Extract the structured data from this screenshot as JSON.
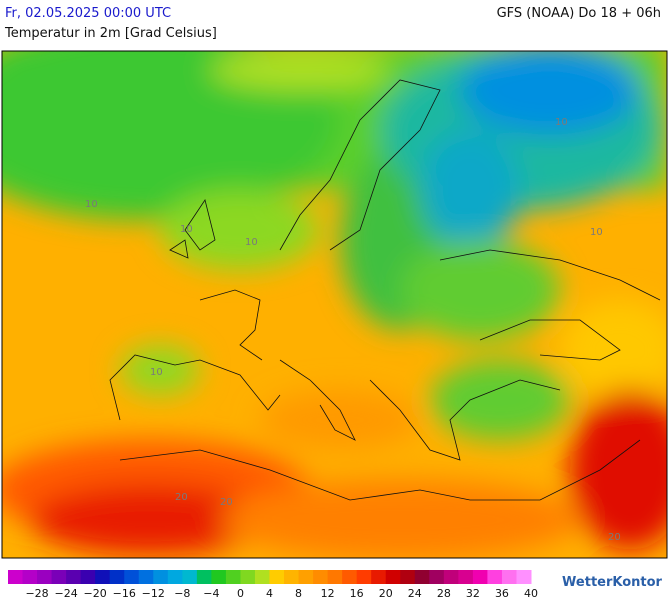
{
  "header": {
    "valid_time": "Fr, 02.05.2025 00:00 UTC",
    "model_run": "GFS (NOAA) Do 18 + 06h",
    "parameter": "Temperatur in 2m [Grad Celsius]"
  },
  "map": {
    "contour_labels": [
      "10",
      "10",
      "10",
      "10",
      "10",
      "10",
      "20",
      "20",
      "20"
    ]
  },
  "legend": {
    "colors": [
      "#cc00cc",
      "#b400c8",
      "#9a00c0",
      "#7a00b8",
      "#5a00b0",
      "#3a00b0",
      "#1010b8",
      "#0030c8",
      "#0050d8",
      "#0070e0",
      "#0090e0",
      "#00a8e0",
      "#00b8d0",
      "#00c060",
      "#20c820",
      "#50d020",
      "#80d820",
      "#b0e020",
      "#ffcc00",
      "#ffb400",
      "#ffa000",
      "#ff8c00",
      "#ff7800",
      "#ff5a00",
      "#ff3c00",
      "#e81a00",
      "#d00000",
      "#b00010",
      "#900030",
      "#a00060",
      "#c0007a",
      "#d80090",
      "#f000b0",
      "#ff40e0",
      "#ff70f0",
      "#ff90ff"
    ],
    "labels": [
      "−28",
      "−24",
      "−20",
      "−16",
      "−12",
      "−8",
      "−4",
      "0",
      "4",
      "8",
      "12",
      "16",
      "20",
      "24",
      "28",
      "32",
      "36",
      "40"
    ]
  },
  "brand": "WetterKontor"
}
